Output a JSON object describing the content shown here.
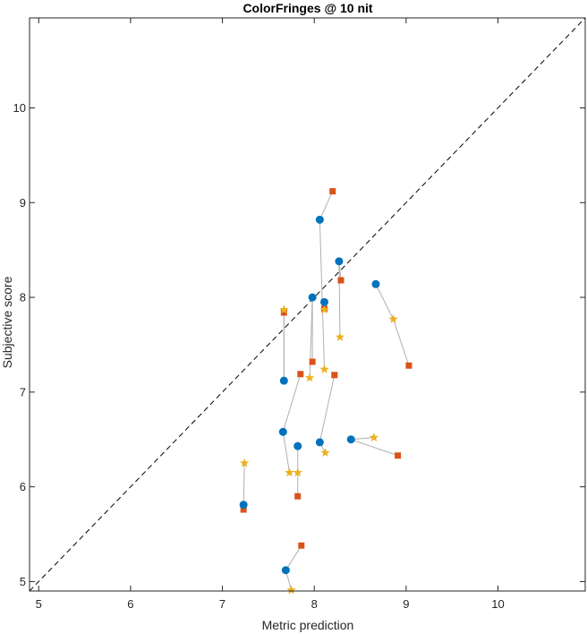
{
  "chart_data": {
    "type": "scatter",
    "title": "ColorFringes @ 10 nit",
    "xlabel": "Metric prediction",
    "ylabel": "Subjective score",
    "xlim": [
      4.9,
      10.95
    ],
    "ylim": [
      4.9,
      10.95
    ],
    "xticks": [
      5,
      6,
      7,
      8,
      9,
      10
    ],
    "yticks": [
      5,
      6,
      7,
      8,
      9,
      10
    ],
    "grid": false,
    "reference_line": "y = x (dashed)",
    "colors": {
      "circle": "#0072BD",
      "square": "#D95319",
      "star": "#EDB120",
      "connector": "#b0b0b0",
      "axis": "#262626"
    },
    "series": [
      {
        "marker": "circle",
        "points": [
          [
            8.06,
            8.82
          ],
          [
            8.27,
            8.38
          ],
          [
            7.98,
            8.0
          ],
          [
            8.11,
            7.95
          ],
          [
            8.67,
            8.14
          ],
          [
            7.67,
            7.12
          ],
          [
            7.66,
            6.58
          ],
          [
            7.82,
            6.43
          ],
          [
            8.06,
            6.47
          ],
          [
            8.4,
            6.5
          ],
          [
            7.23,
            5.81
          ],
          [
            7.69,
            5.12
          ]
        ]
      },
      {
        "marker": "square",
        "points": [
          [
            8.2,
            9.12
          ],
          [
            8.29,
            8.18
          ],
          [
            7.98,
            7.32
          ],
          [
            8.11,
            7.88
          ],
          [
            9.03,
            7.28
          ],
          [
            7.67,
            7.84
          ],
          [
            7.85,
            7.19
          ],
          [
            7.82,
            5.9
          ],
          [
            8.22,
            7.18
          ],
          [
            8.91,
            6.33
          ],
          [
            7.23,
            5.76
          ],
          [
            7.86,
            5.38
          ]
        ]
      },
      {
        "marker": "star",
        "points": [
          [
            8.11,
            7.24
          ],
          [
            8.28,
            7.58
          ],
          [
            7.95,
            7.15
          ],
          [
            8.11,
            7.87
          ],
          [
            8.86,
            7.77
          ],
          [
            7.67,
            7.87
          ],
          [
            7.73,
            6.15
          ],
          [
            7.82,
            6.15
          ],
          [
            8.12,
            6.36
          ],
          [
            8.65,
            6.52
          ],
          [
            7.24,
            6.25
          ],
          [
            7.75,
            4.91
          ]
        ]
      }
    ],
    "connections": [
      [
        0,
        0,
        1
      ],
      [
        0,
        0,
        2
      ],
      [
        1,
        0,
        1
      ],
      [
        1,
        0,
        2
      ],
      [
        2,
        0,
        1
      ],
      [
        2,
        0,
        2
      ],
      [
        3,
        0,
        1
      ],
      [
        3,
        0,
        2
      ],
      [
        4,
        0,
        2
      ],
      [
        4,
        2,
        1
      ],
      [
        5,
        0,
        2
      ],
      [
        5,
        0,
        1
      ],
      [
        6,
        0,
        1
      ],
      [
        6,
        0,
        2
      ],
      [
        7,
        0,
        2
      ],
      [
        7,
        2,
        1
      ],
      [
        8,
        0,
        1
      ],
      [
        8,
        0,
        2
      ],
      [
        9,
        0,
        2
      ],
      [
        9,
        0,
        1
      ],
      [
        10,
        0,
        1
      ],
      [
        10,
        0,
        2
      ],
      [
        11,
        0,
        1
      ],
      [
        11,
        0,
        2
      ]
    ]
  }
}
